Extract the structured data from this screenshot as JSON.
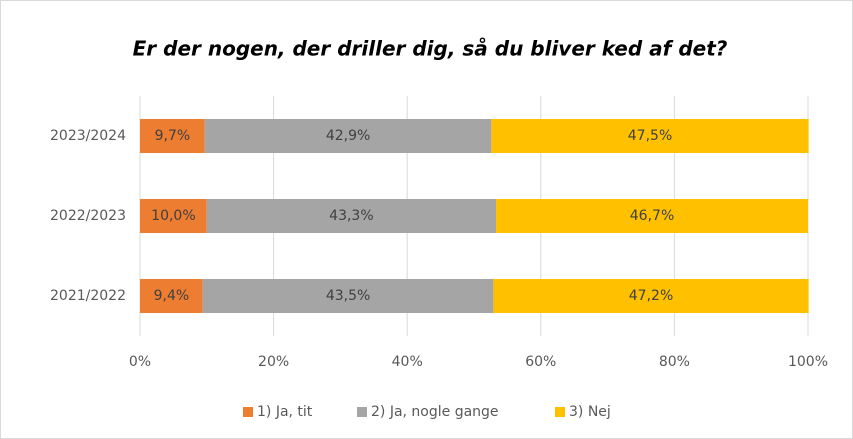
{
  "chart_data": {
    "type": "bar",
    "orientation": "horizontal",
    "stacked": true,
    "title": "Er der nogen, der driller dig, så du bliver ked af det?",
    "categories": [
      "2023/2024",
      "2022/2023",
      "2021/2022"
    ],
    "series": [
      {
        "name": "1) Ja, tit",
        "color": "#ED7D31",
        "values": [
          9.7,
          10.0,
          9.4
        ],
        "value_labels": [
          "9,7%",
          "10,0%",
          "9,4%"
        ]
      },
      {
        "name": "2) Ja, nogle gange",
        "color": "#A5A5A5",
        "values": [
          42.9,
          43.3,
          43.5
        ],
        "value_labels": [
          "42,9%",
          "43,3%",
          "43,5%"
        ]
      },
      {
        "name": "3) Nej",
        "color": "#FFC000",
        "values": [
          47.5,
          46.7,
          47.2
        ],
        "value_labels": [
          "47,5%",
          "46,7%",
          "47,2%"
        ]
      }
    ],
    "xlim": [
      0,
      100
    ],
    "xticks": [
      {
        "value": 0,
        "label": "0%"
      },
      {
        "value": 20,
        "label": "20%"
      },
      {
        "value": 40,
        "label": "40%"
      },
      {
        "value": 60,
        "label": "60%"
      },
      {
        "value": 80,
        "label": "80%"
      },
      {
        "value": 100,
        "label": "100%"
      }
    ],
    "grid": true,
    "legend": "bottom"
  }
}
